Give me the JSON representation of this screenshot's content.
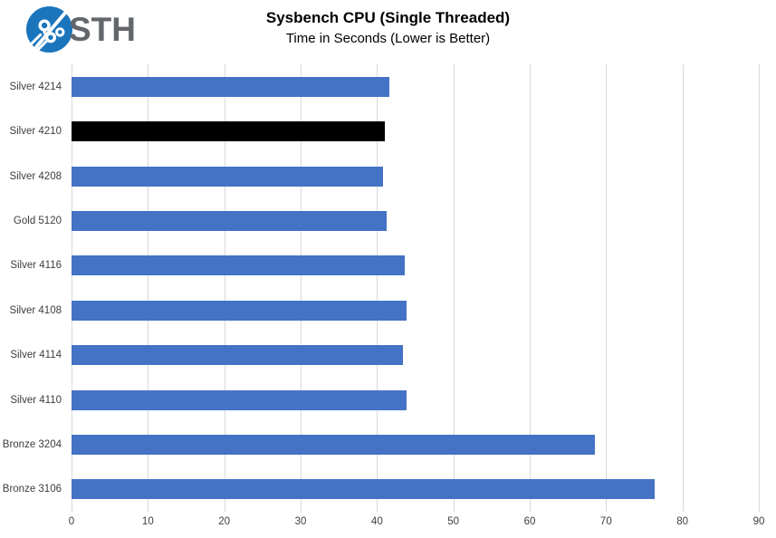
{
  "logo": {
    "text": "STH",
    "circle_color": "#1b75bc",
    "text_color": "#63666a"
  },
  "header": {
    "title": "Sysbench CPU (Single Threaded)",
    "subtitle": "Time in Seconds (Lower is Better)"
  },
  "chart_data": {
    "type": "bar",
    "orientation": "horizontal",
    "title": "Sysbench CPU (Single Threaded)",
    "subtitle": "Time in Seconds (Lower is Better)",
    "xlabel": "",
    "ylabel": "",
    "categories": [
      "Silver 4214",
      "Silver 4210",
      "Silver 4208",
      "Gold 5120",
      "Silver 4116",
      "Silver 4108",
      "Silver 4114",
      "Silver 4110",
      "Bronze 3204",
      "Bronze 3106"
    ],
    "values": [
      41.6,
      41.0,
      40.8,
      41.3,
      43.6,
      43.9,
      43.4,
      43.9,
      68.5,
      76.4
    ],
    "bar_colors": [
      "#4472c4",
      "#000000",
      "#4472c4",
      "#4472c4",
      "#4472c4",
      "#4472c4",
      "#4472c4",
      "#4472c4",
      "#4472c4",
      "#4472c4"
    ],
    "highlighted_category": "Silver 4210",
    "xlim": [
      0,
      90
    ],
    "xticks": [
      0,
      10,
      20,
      30,
      40,
      50,
      60,
      70,
      80,
      90
    ],
    "grid": "vertical",
    "gridline_color": "#d9d9d9",
    "legend": "none"
  }
}
